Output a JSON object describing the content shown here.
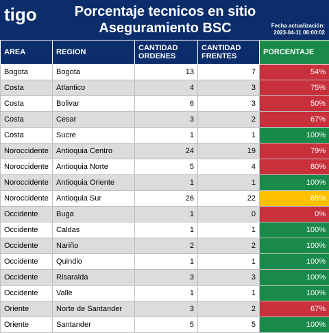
{
  "header": {
    "logo": "tigo",
    "title_line1": "Porcentaje tecnicos en sitio",
    "title_line2": "Aseguramiento BSC",
    "update_label": "Fecha actualización:",
    "update_value": "2023-04-11 08:00:02"
  },
  "columns": [
    "AREA",
    "REGION",
    "CANTIDAD ORDENES",
    "CANTIDAD FRENTES",
    "PORCENTAJE"
  ],
  "colors": {
    "red": "#c8303c",
    "green": "#1a8a4a",
    "yellow": "#ffc000",
    "header": "#0b2d6b"
  },
  "rows": [
    {
      "area": "Bogota",
      "region": "Bogota",
      "ordenes": "13",
      "frentes": "7",
      "pct": "54%",
      "status": "red"
    },
    {
      "area": "Costa",
      "region": "Atlantico",
      "ordenes": "4",
      "frentes": "3",
      "pct": "75%",
      "status": "red"
    },
    {
      "area": "Costa",
      "region": "Bolivar",
      "ordenes": "6",
      "frentes": "3",
      "pct": "50%",
      "status": "red"
    },
    {
      "area": "Costa",
      "region": "Cesar",
      "ordenes": "3",
      "frentes": "2",
      "pct": "67%",
      "status": "red"
    },
    {
      "area": "Costa",
      "region": "Sucre",
      "ordenes": "1",
      "frentes": "1",
      "pct": "100%",
      "status": "green"
    },
    {
      "area": "Noroccidente",
      "region": "Antioquia Centro",
      "ordenes": "24",
      "frentes": "19",
      "pct": "79%",
      "status": "red"
    },
    {
      "area": "Noroccidente",
      "region": "Antioquia Norte",
      "ordenes": "5",
      "frentes": "4",
      "pct": "80%",
      "status": "red"
    },
    {
      "area": "Noroccidente",
      "region": "Antioquia Oriente",
      "ordenes": "1",
      "frentes": "1",
      "pct": "100%",
      "status": "green"
    },
    {
      "area": "Noroccidente",
      "region": "Antioquia Sur",
      "ordenes": "26",
      "frentes": "22",
      "pct": "85%",
      "status": "yellow"
    },
    {
      "area": "Occidente",
      "region": "Buga",
      "ordenes": "1",
      "frentes": "0",
      "pct": "0%",
      "status": "red"
    },
    {
      "area": "Occidente",
      "region": "Caldas",
      "ordenes": "1",
      "frentes": "1",
      "pct": "100%",
      "status": "green"
    },
    {
      "area": "Occidente",
      "region": "Nariño",
      "ordenes": "2",
      "frentes": "2",
      "pct": "100%",
      "status": "green"
    },
    {
      "area": "Occidente",
      "region": "Quindio",
      "ordenes": "1",
      "frentes": "1",
      "pct": "100%",
      "status": "green"
    },
    {
      "area": "Occidente",
      "region": "Risaralda",
      "ordenes": "3",
      "frentes": "3",
      "pct": "100%",
      "status": "green"
    },
    {
      "area": "Occidente",
      "region": "Valle",
      "ordenes": "1",
      "frentes": "1",
      "pct": "100%",
      "status": "green"
    },
    {
      "area": "Oriente",
      "region": "Norte de Santander",
      "ordenes": "3",
      "frentes": "2",
      "pct": "67%",
      "status": "red"
    },
    {
      "area": "Oriente",
      "region": "Santander",
      "ordenes": "5",
      "frentes": "5",
      "pct": "100%",
      "status": "green"
    }
  ]
}
